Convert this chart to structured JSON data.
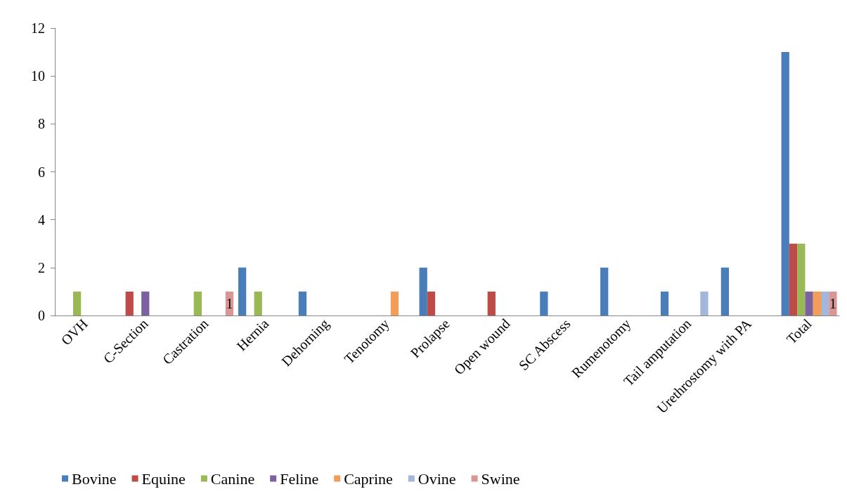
{
  "chart_data": {
    "type": "bar",
    "categories": [
      "OVH",
      "C-Section",
      "Castration",
      "Hernia",
      "Dehorning",
      "Tenotomy",
      "Prolapse",
      "Open wound",
      "SC Abscess",
      "Rumenotomy",
      "Tail amputation",
      "Urethrostomy with PA",
      "Total"
    ],
    "series": [
      {
        "name": "Bovine",
        "color": "#4a7ebb",
        "values": [
          0,
          0,
          0,
          2,
          1,
          0,
          2,
          0,
          1,
          2,
          1,
          2,
          11
        ]
      },
      {
        "name": "Equine",
        "color": "#be4b48",
        "values": [
          0,
          1,
          0,
          0,
          0,
          0,
          1,
          1,
          0,
          0,
          0,
          0,
          3
        ]
      },
      {
        "name": "Canine",
        "color": "#98b954",
        "values": [
          1,
          0,
          1,
          1,
          0,
          0,
          0,
          0,
          0,
          0,
          0,
          0,
          3
        ]
      },
      {
        "name": "Feline",
        "color": "#7d60a0",
        "values": [
          0,
          1,
          0,
          0,
          0,
          0,
          0,
          0,
          0,
          0,
          0,
          0,
          1
        ]
      },
      {
        "name": "Caprine",
        "color": "#f59d56",
        "values": [
          0,
          0,
          0,
          0,
          0,
          1,
          0,
          0,
          0,
          0,
          0,
          0,
          1
        ]
      },
      {
        "name": "Ovine",
        "color": "#a5b6db",
        "values": [
          0,
          0,
          0,
          0,
          0,
          0,
          0,
          0,
          0,
          0,
          1,
          0,
          1
        ]
      },
      {
        "name": "Swine",
        "color": "#d99694",
        "values": [
          0,
          0,
          1,
          0,
          0,
          0,
          0,
          0,
          0,
          0,
          0,
          0,
          1
        ],
        "value_labels": [
          null,
          null,
          "1",
          null,
          null,
          null,
          null,
          null,
          null,
          null,
          null,
          null,
          "1"
        ]
      }
    ],
    "ylim": [
      0,
      12
    ],
    "yticks": [
      0,
      2,
      4,
      6,
      8,
      10,
      12
    ],
    "grid": false,
    "legend": "bottom left"
  }
}
